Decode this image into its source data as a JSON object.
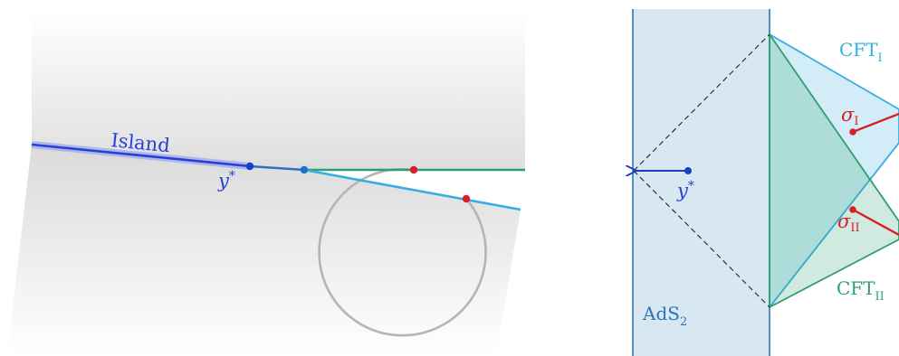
{
  "left_panel": {
    "island_label": "Island",
    "ystar_label": "y",
    "ystar_sup": "*"
  },
  "right_panel": {
    "cft1_main": "CFT",
    "cft1_sub": "I",
    "cft2_main": "CFT",
    "cft2_sub": "II",
    "sigma1_main": "σ",
    "sigma1_sub": "I",
    "sigma2_main": "σ",
    "sigma2_sub": "II",
    "ads_main": "AdS",
    "ads_sub": "2",
    "ystar_label": "y",
    "ystar_sup": "*"
  },
  "colors": {
    "island_blue": "#2a3fd6",
    "cyan": "#35aee0",
    "green": "#2f9e6e",
    "red": "#d8202a",
    "point_blue": "#1a3fc7",
    "dark_blue": "#1f5fb0",
    "ads_fill": "#d7e8f3",
    "ads_edge": "#2f74b5",
    "circle_gray": "#b5b5b5"
  }
}
